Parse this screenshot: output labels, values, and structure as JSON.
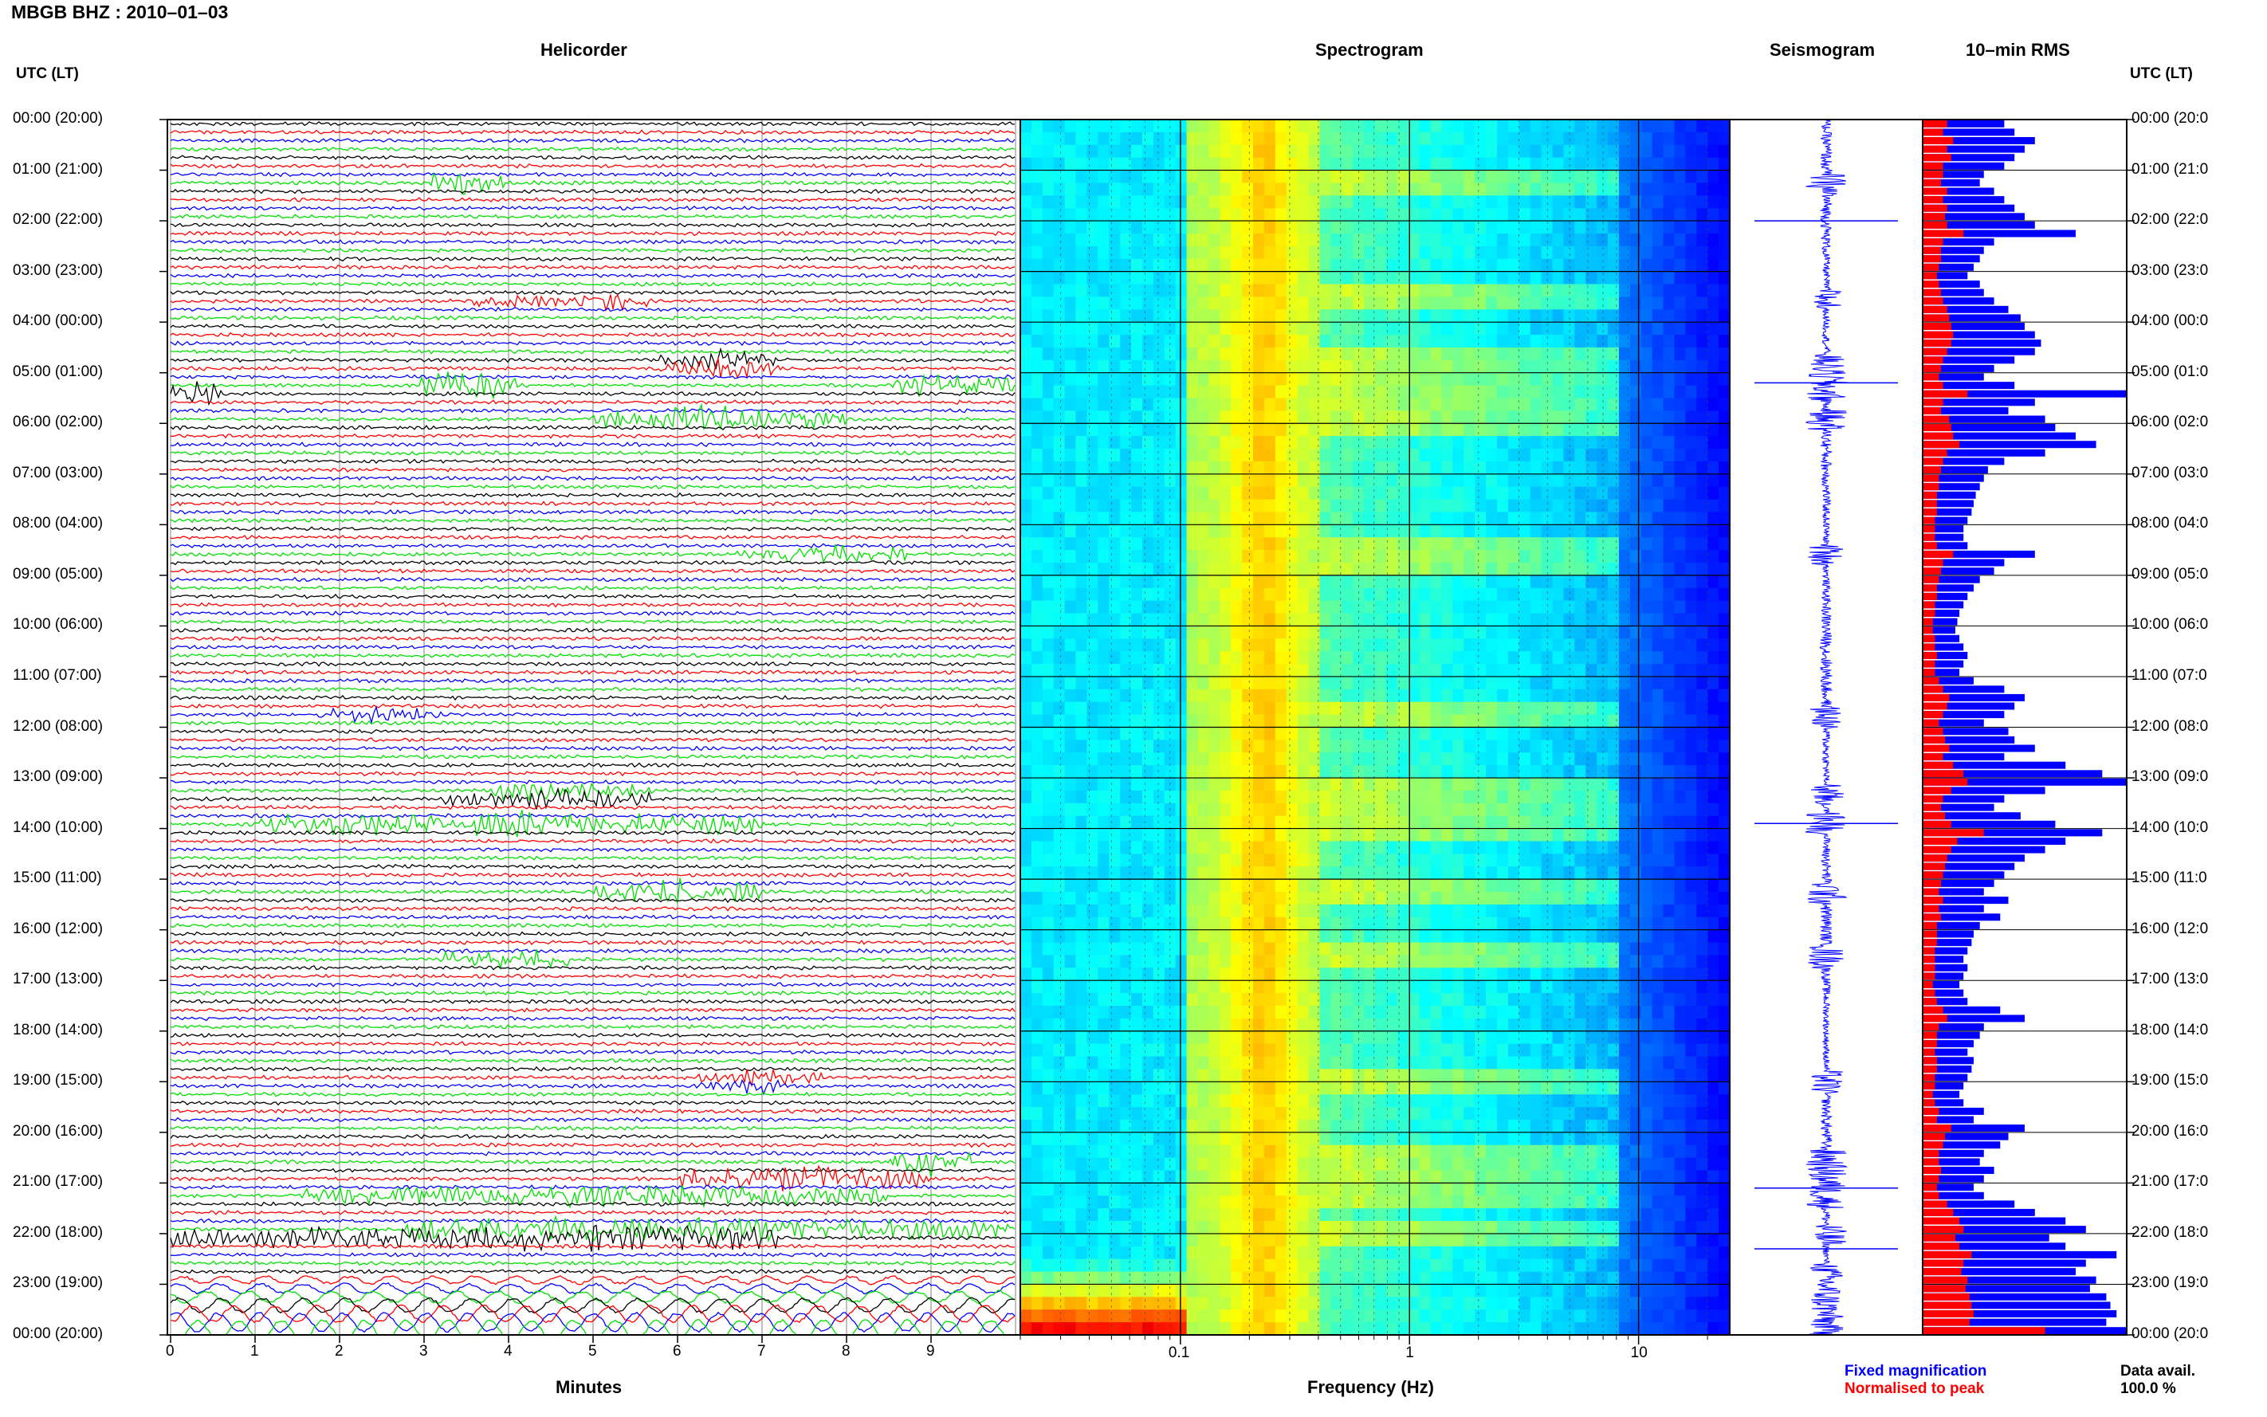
{
  "title": "MBGB BHZ : 2010–01–03",
  "panels": {
    "helicorder": "Helicorder",
    "spectrogram": "Spectrogram",
    "seismogram": "Seismogram",
    "rms": "10–min RMS"
  },
  "utc_label_left": "UTC (LT)",
  "utc_label_right": "UTC (LT)",
  "footer": {
    "helicorder_xlabel": "Minutes",
    "spectrogram_xlabel": "Frequency (Hz)",
    "legend_fixed": "Fixed magnification",
    "legend_normalised": "Normalised to peak",
    "data_avail_label": "Data avail.",
    "data_avail_value": "100.0 %"
  },
  "colors": {
    "fixed": "#0000ff",
    "normalised": "#ff0000",
    "trace_cycle": [
      "#000000",
      "#ff0000",
      "#0000ff",
      "#00e000"
    ]
  },
  "chart_data": {
    "type": "helicorder+spectrogram+seismogram+rms",
    "time_labels_left": [
      "00:00 (20:00)",
      "01:00 (21:00)",
      "02:00 (22:00)",
      "03:00 (23:00)",
      "04:00 (00:00)",
      "05:00 (01:00)",
      "06:00 (02:00)",
      "07:00 (03:00)",
      "08:00 (04:00)",
      "09:00 (05:00)",
      "10:00 (06:00)",
      "11:00 (07:00)",
      "12:00 (08:00)",
      "13:00 (09:00)",
      "14:00 (10:00)",
      "15:00 (11:00)",
      "16:00 (12:00)",
      "17:00 (13:00)",
      "18:00 (14:00)",
      "19:00 (15:00)",
      "20:00 (16:00)",
      "21:00 (17:00)",
      "22:00 (18:00)",
      "23:00 (19:00)",
      "00:00 (20:00)"
    ],
    "time_labels_right": [
      "00:00 (20:0",
      "01:00 (21:0",
      "02:00 (22:0",
      "03:00 (23:0",
      "04:00 (00:0",
      "05:00 (01:0",
      "06:00 (02:0",
      "07:00 (03:0",
      "08:00 (04:0",
      "09:00 (05:0",
      "10:00 (06:0",
      "11:00 (07:0",
      "12:00 (08:0",
      "13:00 (09:0",
      "14:00 (10:0",
      "15:00 (11:0",
      "16:00 (12:0",
      "17:00 (13:0",
      "18:00 (14:0",
      "19:00 (15:0",
      "20:00 (16:0",
      "21:00 (17:0",
      "22:00 (18:0",
      "23:00 (19:0",
      "00:00 (20:0"
    ],
    "helicorder": {
      "xlabel": "Minutes",
      "xticks": [
        "0",
        "1",
        "2",
        "3",
        "4",
        "5",
        "6",
        "7",
        "8",
        "9"
      ],
      "xlim": [
        0,
        10
      ],
      "line_duration_min": 10,
      "lines": 144,
      "events": [
        {
          "hour": 1.3,
          "t_min": 3.5,
          "w": 0.9,
          "a": 3.0
        },
        {
          "hour": 3.55,
          "t_min": 4.1,
          "w": 1.2,
          "a": 2.0
        },
        {
          "hour": 3.55,
          "t_min": 5.2,
          "w": 1.0,
          "a": 2.0
        },
        {
          "hour": 4.85,
          "t_min": 6.5,
          "w": 1.4,
          "a": 2.2
        },
        {
          "hour": 5.2,
          "t_min": 3.5,
          "w": 1.2,
          "a": 3.5
        },
        {
          "hour": 5.3,
          "t_min": 9.3,
          "w": 1.5,
          "a": 3.0
        },
        {
          "hour": 5.35,
          "t_min": 0.3,
          "w": 0.6,
          "a": 3.0
        },
        {
          "hour": 5.95,
          "t_min": 6.5,
          "w": 3.0,
          "a": 3.0
        },
        {
          "hour": 8.6,
          "t_min": 7.7,
          "w": 2.0,
          "a": 2.2
        },
        {
          "hour": 11.8,
          "t_min": 2.5,
          "w": 1.5,
          "a": 1.8
        },
        {
          "hour": 13.35,
          "t_min": 4.5,
          "w": 2.5,
          "a": 2.2
        },
        {
          "hour": 13.9,
          "t_min": 4.0,
          "w": 6.0,
          "a": 3.0
        },
        {
          "hour": 15.3,
          "t_min": 6.0,
          "w": 2.0,
          "a": 3.0
        },
        {
          "hour": 16.55,
          "t_min": 4.0,
          "w": 1.5,
          "a": 2.5
        },
        {
          "hour": 19.0,
          "t_min": 7.0,
          "w": 1.5,
          "a": 1.8
        },
        {
          "hour": 20.55,
          "t_min": 9.0,
          "w": 1.0,
          "a": 3.0
        },
        {
          "hour": 20.95,
          "t_min": 7.5,
          "w": 3.0,
          "a": 3.0
        },
        {
          "hour": 21.3,
          "t_min": 5.0,
          "w": 7.0,
          "a": 2.5
        },
        {
          "hour": 22.0,
          "t_min": 5.0,
          "w": 10.0,
          "a": 3.0
        }
      ]
    },
    "spectrogram": {
      "xlabel": "Frequency (Hz)",
      "xscale": "log",
      "xlim": [
        0.02,
        25
      ],
      "xticks": [
        0.1,
        1,
        10
      ],
      "xtick_labels": [
        "0.1",
        "1",
        "10"
      ],
      "colormap": "jet",
      "peak_band_hz": [
        0.15,
        0.35
      ],
      "high_freq_rolloff_hz": 8
    },
    "seismogram": {
      "colors": "blue",
      "spikes_hour": [
        2.0,
        5.2,
        13.9,
        21.1,
        22.3
      ]
    },
    "rms": {
      "bins_per_hour": 6,
      "series": [
        {
          "name": "Fixed magnification",
          "color": "#0000ff",
          "values": [
            0.4,
            0.45,
            0.55,
            0.5,
            0.45,
            0.4,
            0.3,
            0.28,
            0.35,
            0.4,
            0.45,
            0.5,
            0.55,
            0.75,
            0.35,
            0.3,
            0.28,
            0.25,
            0.22,
            0.28,
            0.3,
            0.35,
            0.42,
            0.48,
            0.5,
            0.55,
            0.58,
            0.55,
            0.45,
            0.35,
            0.3,
            0.45,
            1.0,
            0.55,
            0.42,
            0.6,
            0.65,
            0.75,
            0.85,
            0.6,
            0.4,
            0.32,
            0.3,
            0.28,
            0.26,
            0.25,
            0.24,
            0.22,
            0.2,
            0.2,
            0.22,
            0.55,
            0.4,
            0.35,
            0.28,
            0.25,
            0.22,
            0.2,
            0.18,
            0.17,
            0.16,
            0.18,
            0.2,
            0.22,
            0.2,
            0.18,
            0.25,
            0.4,
            0.5,
            0.45,
            0.4,
            0.3,
            0.42,
            0.45,
            0.55,
            0.4,
            0.7,
            0.88,
            1.0,
            0.6,
            0.4,
            0.35,
            0.48,
            0.65,
            0.88,
            0.7,
            0.6,
            0.5,
            0.45,
            0.4,
            0.35,
            0.3,
            0.42,
            0.3,
            0.38,
            0.28,
            0.25,
            0.24,
            0.22,
            0.2,
            0.22,
            0.2,
            0.18,
            0.2,
            0.22,
            0.38,
            0.5,
            0.3,
            0.28,
            0.25,
            0.22,
            0.25,
            0.24,
            0.22,
            0.2,
            0.18,
            0.2,
            0.3,
            0.25,
            0.5,
            0.42,
            0.38,
            0.3,
            0.28,
            0.35,
            0.3,
            0.25,
            0.3,
            0.45,
            0.55,
            0.7,
            0.8,
            0.62,
            0.7,
            0.95,
            0.8,
            0.75,
            0.85,
            0.82,
            0.9,
            0.92,
            0.95,
            0.9,
            1.0
          ]
        },
        {
          "name": "Normalised to peak",
          "color": "#ff0000",
          "values": [
            0.12,
            0.1,
            0.15,
            0.12,
            0.14,
            0.1,
            0.1,
            0.09,
            0.12,
            0.1,
            0.12,
            0.11,
            0.12,
            0.2,
            0.1,
            0.09,
            0.09,
            0.08,
            0.07,
            0.08,
            0.09,
            0.1,
            0.12,
            0.13,
            0.14,
            0.15,
            0.14,
            0.12,
            0.1,
            0.09,
            0.08,
            0.1,
            0.22,
            0.1,
            0.09,
            0.13,
            0.14,
            0.15,
            0.18,
            0.12,
            0.1,
            0.09,
            0.08,
            0.08,
            0.07,
            0.07,
            0.07,
            0.06,
            0.06,
            0.06,
            0.07,
            0.15,
            0.1,
            0.09,
            0.08,
            0.07,
            0.07,
            0.06,
            0.06,
            0.05,
            0.05,
            0.06,
            0.06,
            0.07,
            0.06,
            0.06,
            0.08,
            0.1,
            0.13,
            0.12,
            0.1,
            0.08,
            0.1,
            0.11,
            0.13,
            0.1,
            0.15,
            0.2,
            0.22,
            0.14,
            0.1,
            0.09,
            0.11,
            0.14,
            0.3,
            0.17,
            0.14,
            0.12,
            0.11,
            0.1,
            0.09,
            0.08,
            0.1,
            0.08,
            0.09,
            0.07,
            0.07,
            0.07,
            0.06,
            0.06,
            0.06,
            0.06,
            0.05,
            0.06,
            0.07,
            0.1,
            0.12,
            0.08,
            0.07,
            0.07,
            0.06,
            0.07,
            0.07,
            0.06,
            0.06,
            0.05,
            0.06,
            0.08,
            0.07,
            0.14,
            0.11,
            0.1,
            0.08,
            0.08,
            0.09,
            0.08,
            0.07,
            0.08,
            0.12,
            0.15,
            0.18,
            0.2,
            0.16,
            0.18,
            0.24,
            0.2,
            0.19,
            0.22,
            0.21,
            0.23,
            0.24,
            0.25,
            0.23,
            0.6
          ]
        }
      ]
    }
  }
}
